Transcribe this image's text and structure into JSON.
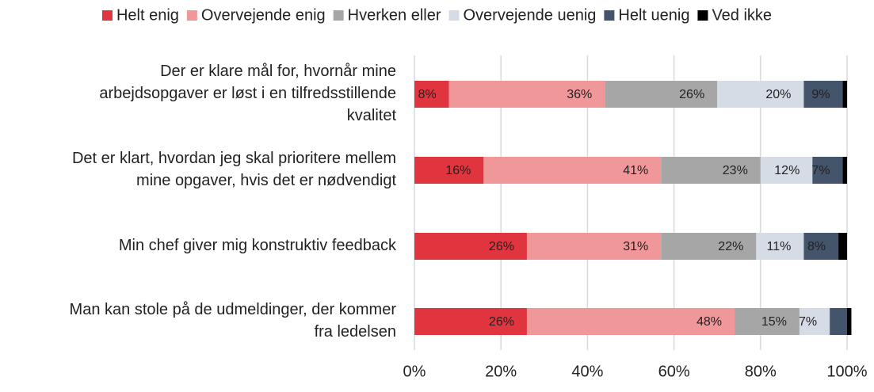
{
  "chart_data": {
    "type": "stacked-bar-horizontal",
    "categories": [
      [
        "Der er klare mål for, hvornår mine",
        "arbejdsopgaver er løst i en tilfredsstillende",
        "kvalitet"
      ],
      [
        "Det er klart, hvordan jeg skal prioritere mellem",
        "mine opgaver, hvis det er nødvendigt"
      ],
      [
        "Min chef giver mig konstruktiv feedback"
      ],
      [
        "Man kan stole på de udmeldinger, der kommer",
        "fra ledelsen"
      ]
    ],
    "series": [
      {
        "name": "Helt enig",
        "color": "#e0353f",
        "values": [
          8,
          16,
          26,
          26
        ],
        "value_labels": [
          "8%",
          "16%",
          "26%",
          "26%"
        ]
      },
      {
        "name": "Overvejende enig",
        "color": "#f0979a",
        "values": [
          36,
          41,
          31,
          48
        ],
        "value_labels": [
          "36%",
          "41%",
          "31%",
          "48%"
        ]
      },
      {
        "name": "Hverken eller",
        "color": "#a6a6a6",
        "values": [
          26,
          23,
          22,
          15
        ],
        "value_labels": [
          "26%",
          "23%",
          "22%",
          "15%"
        ]
      },
      {
        "name": "Overvejende uenig",
        "color": "#d6dce5",
        "values": [
          20,
          12,
          11,
          7
        ],
        "value_labels": [
          "20%",
          "12%",
          "11%",
          "7%"
        ]
      },
      {
        "name": "Helt uenig",
        "color": "#44546a",
        "values": [
          9,
          7,
          8,
          4
        ],
        "value_labels": [
          "9%",
          "7%",
          "8%",
          null
        ]
      },
      {
        "name": "Ved ikke",
        "color": "#000000",
        "values": [
          1,
          1,
          2,
          1
        ]
      }
    ],
    "xlim": [
      0,
      100
    ],
    "xticks": [
      {
        "value": 0,
        "label": "0%"
      },
      {
        "value": 20,
        "label": "20%"
      },
      {
        "value": 40,
        "label": "40%"
      },
      {
        "value": 60,
        "label": "60%"
      },
      {
        "value": 80,
        "label": "80%"
      },
      {
        "value": 100,
        "label": "100%"
      }
    ],
    "grid": true,
    "legend": "top"
  }
}
